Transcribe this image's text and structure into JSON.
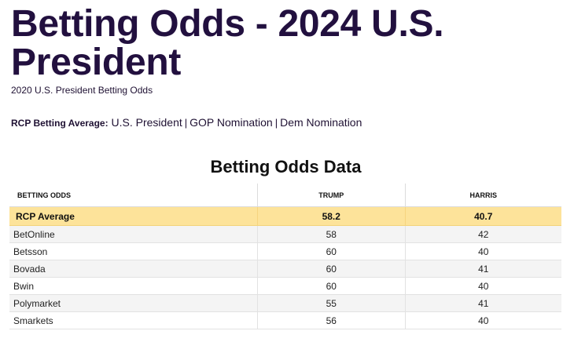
{
  "header": {
    "title": "Betting Odds - 2024 U.S. President",
    "subtitle_link": "2020 U.S. President Betting Odds"
  },
  "nav": {
    "label": "RCP Betting Average:",
    "links": [
      "U.S. President",
      "GOP Nomination",
      "Dem Nomination"
    ],
    "separator": "|"
  },
  "table": {
    "title": "Betting Odds Data",
    "columns": [
      "Betting Odds",
      "Trump",
      "Harris"
    ],
    "average_row": {
      "source": "RCP Average",
      "trump": "58.2",
      "harris": "40.7"
    },
    "rows": [
      {
        "source": "BetOnline",
        "trump": "58",
        "harris": "42"
      },
      {
        "source": "Betsson",
        "trump": "60",
        "harris": "40"
      },
      {
        "source": "Bovada",
        "trump": "60",
        "harris": "41"
      },
      {
        "source": "Bwin",
        "trump": "60",
        "harris": "40"
      },
      {
        "source": "Polymarket",
        "trump": "55",
        "harris": "41"
      },
      {
        "source": "Smarkets",
        "trump": "56",
        "harris": "40"
      }
    ]
  },
  "colors": {
    "title": "#22103f",
    "average_row_bg": "#fde39a",
    "alt_row_bg": "#f4f4f4"
  }
}
